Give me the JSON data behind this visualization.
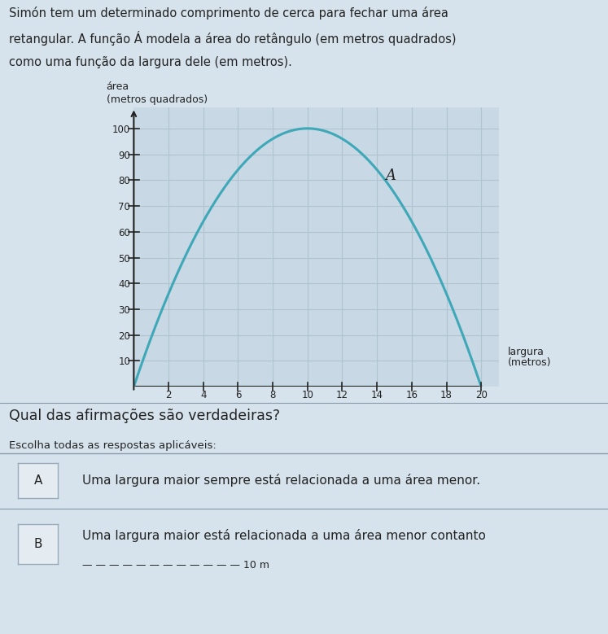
{
  "title_text_line1": "Simón tem um determinado comprimento de cerca para fechar uma área",
  "title_text_line2": "retangular. A função Á modela a área do retângulo (em metros quadrados)",
  "title_text_line3": "como uma função da largura dele (em metros).",
  "ylabel_line1": "área",
  "ylabel_line2": "(metros quadrados)",
  "xlabel_line1": "largura",
  "xlabel_line2": "(metros)",
  "curve_label": "A",
  "curve_color": "#3fa8b8",
  "background_color": "#d6e3ec",
  "plot_bg_color": "#c8d8e4",
  "grid_color": "#b0c4d0",
  "axis_color": "#222222",
  "text_color": "#222222",
  "x_ticks": [
    2,
    4,
    6,
    8,
    10,
    12,
    14,
    16,
    18,
    20
  ],
  "y_ticks": [
    10,
    20,
    30,
    40,
    50,
    60,
    70,
    80,
    90,
    100
  ],
  "xlim": [
    0,
    21
  ],
  "ylim": [
    0,
    108
  ],
  "question_text": "Qual das afirmações são verdadeiras?",
  "instruction_text": "Escolha todas as respostas aplicáveis:",
  "option_A_label": "A",
  "option_A_text": "Uma largura maior sempre está relacionada a uma área menor.",
  "option_B_label": "B",
  "option_B_text": "Uma largura maior está relacionada a uma área menor contanto",
  "option_box_bg": "#e4ecf2",
  "option_border_color": "#99aabb",
  "separator_color": "#8899aa",
  "title_bg": "#cfd9e2"
}
